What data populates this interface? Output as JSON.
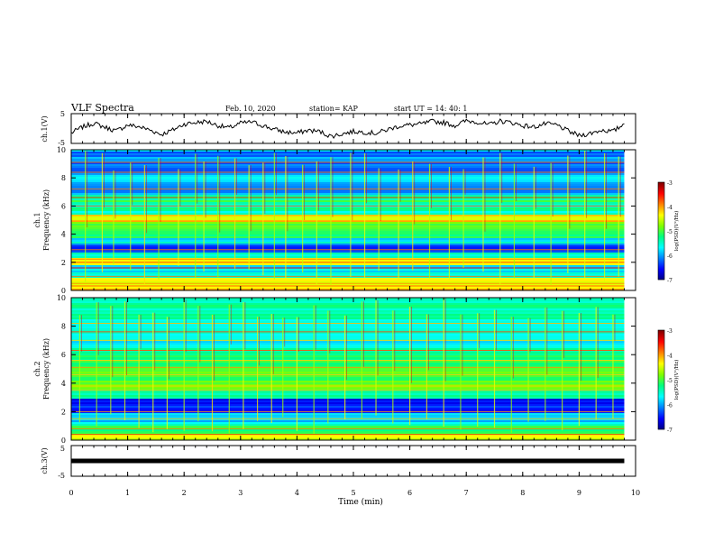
{
  "header": {
    "title": "VLF Spectra",
    "date": "Feb. 10, 2020",
    "station": "station= KAP",
    "start_ut": "start  UT =   14: 40: 1"
  },
  "chart_data": [
    {
      "type": "line",
      "panel": "ch1-waveform",
      "ylabel": "ch.1(V)",
      "ylim": [
        -5,
        5
      ],
      "y_ticks": [
        "5",
        "-5"
      ],
      "xlim": [
        0,
        10
      ],
      "trace_color": "#000000",
      "x": [
        0.0,
        0.2,
        0.4,
        0.6,
        0.8,
        1.0,
        1.2,
        1.4,
        1.6,
        1.8,
        2.0,
        2.2,
        2.4,
        2.6,
        2.8,
        3.0,
        3.2,
        3.4,
        3.6,
        3.8,
        4.0,
        4.2,
        4.4,
        4.6,
        4.8,
        5.0,
        5.2,
        5.4,
        5.6,
        5.8,
        6.0,
        6.2,
        6.4,
        6.6,
        6.8,
        7.0,
        7.2,
        7.4,
        7.6,
        7.8,
        8.0,
        8.2,
        8.4,
        8.6,
        8.8,
        9.0,
        9.2,
        9.4,
        9.6,
        9.8
      ],
      "y": [
        -1.5,
        0.5,
        1.8,
        0.4,
        -0.8,
        1.2,
        0.6,
        -0.5,
        -2.0,
        -0.5,
        1.5,
        2.0,
        2.4,
        1.0,
        0.2,
        1.8,
        2.2,
        1.0,
        -0.3,
        -1.2,
        -1.5,
        -0.6,
        -1.0,
        -2.6,
        -1.8,
        -1.0,
        -1.2,
        -1.6,
        -0.4,
        0.8,
        1.2,
        1.5,
        2.4,
        2.0,
        1.0,
        2.6,
        2.2,
        1.2,
        2.5,
        2.0,
        1.0,
        0.5,
        1.6,
        1.2,
        -0.8,
        -2.4,
        -1.6,
        -0.5,
        -1.0,
        1.6
      ]
    },
    {
      "type": "heatmap",
      "panel": "ch1-spectrogram",
      "ylabel": "ch.1\nFrequency (kHz)",
      "ylim": [
        0,
        10
      ],
      "y_ticks": [
        "0",
        "2",
        "4",
        "6",
        "8",
        "10"
      ],
      "xlim": [
        0,
        10
      ],
      "colorbar_label": "log(PSD)(V²/Hz)",
      "colorbar_ticks": [
        "-3",
        "-4",
        "-5",
        "-6",
        "-7"
      ],
      "colorbar_range": [
        -7,
        -3
      ],
      "y_bands": [
        [
          0,
          0.5,
          -4.2
        ],
        [
          0.5,
          1.0,
          -4.5
        ],
        [
          1.0,
          1.4,
          -5.4
        ],
        [
          1.4,
          1.9,
          -5.8
        ],
        [
          1.9,
          2.4,
          -4.4
        ],
        [
          2.4,
          2.8,
          -5.5
        ],
        [
          2.8,
          3.4,
          -6.3
        ],
        [
          3.4,
          3.8,
          -5.7
        ],
        [
          3.8,
          4.4,
          -5.2
        ],
        [
          4.4,
          5.0,
          -5.0
        ],
        [
          5.0,
          5.4,
          -4.3
        ],
        [
          5.4,
          6.2,
          -5.4
        ],
        [
          6.2,
          6.8,
          -5.2
        ],
        [
          6.8,
          7.6,
          -5.9
        ],
        [
          7.6,
          8.4,
          -5.8
        ],
        [
          8.4,
          10.0,
          -6.1
        ]
      ],
      "horizontal_lines_khz": [
        0.5,
        1.0,
        1.6,
        2.0,
        2.2,
        2.9,
        4.9,
        5.3,
        6.0,
        6.6,
        7.2,
        8.4,
        9.1
      ],
      "vertical_bursts_min": [
        0.25,
        0.55,
        0.75,
        1.05,
        1.3,
        1.55,
        1.9,
        2.2,
        2.35,
        2.6,
        2.9,
        3.15,
        3.4,
        3.6,
        3.8,
        4.1,
        4.35,
        4.6,
        4.95,
        5.2,
        5.45,
        5.8,
        6.05,
        6.35,
        6.7,
        6.95,
        7.3,
        7.6,
        7.85,
        8.2,
        8.5,
        8.8,
        9.1,
        9.45,
        9.7
      ]
    },
    {
      "type": "heatmap",
      "panel": "ch2-spectrogram",
      "ylabel": "ch.2\nFrequency (kHz)",
      "ylim": [
        0,
        10
      ],
      "y_ticks": [
        "0",
        "2",
        "4",
        "6",
        "8",
        "10"
      ],
      "xlim": [
        0,
        10
      ],
      "colorbar_label": "log(PSD)(V²/Hz)",
      "colorbar_ticks": [
        "-3",
        "-4",
        "-5",
        "-6",
        "-7"
      ],
      "colorbar_range": [
        -7,
        -3
      ],
      "y_bands": [
        [
          0,
          0.5,
          -4.3
        ],
        [
          0.5,
          1.2,
          -5.2
        ],
        [
          1.2,
          2.0,
          -5.8
        ],
        [
          2.0,
          3.0,
          -6.5
        ],
        [
          3.0,
          3.6,
          -5.4
        ],
        [
          3.6,
          4.3,
          -4.8
        ],
        [
          4.3,
          5.2,
          -4.9
        ],
        [
          5.2,
          6.0,
          -5.1
        ],
        [
          6.0,
          6.8,
          -5.4
        ],
        [
          6.8,
          8.0,
          -5.6
        ],
        [
          8.0,
          10.0,
          -5.4
        ]
      ],
      "horizontal_lines_khz": [
        0.4,
        0.8,
        1.5,
        2.0,
        3.5,
        3.8,
        4.6,
        5.1,
        5.6,
        6.3,
        7.0,
        7.6,
        8.2
      ],
      "vertical_bursts_min": [
        0.15,
        0.45,
        0.7,
        0.95,
        1.2,
        1.45,
        1.7,
        2.0,
        2.25,
        2.5,
        2.8,
        3.05,
        3.3,
        3.55,
        3.75,
        4.0,
        4.3,
        4.55,
        4.85,
        5.15,
        5.4,
        5.7,
        6.0,
        6.3,
        6.6,
        6.9,
        7.2,
        7.5,
        7.8,
        8.1,
        8.4,
        8.7,
        9.0,
        9.3,
        9.6
      ]
    },
    {
      "type": "line",
      "panel": "ch3-waveform",
      "ylabel": "ch.3(V)",
      "ylim": [
        -5,
        5
      ],
      "y_ticks": [
        "5",
        "-5"
      ],
      "xlim": [
        0,
        10
      ],
      "trace_color": "#000000",
      "x": [
        0,
        9.8
      ],
      "y": [
        0,
        0
      ]
    }
  ],
  "x_axis": {
    "label": "Time (min)",
    "ticks": [
      "0",
      "1",
      "2",
      "3",
      "4",
      "5",
      "6",
      "7",
      "8",
      "9",
      "10"
    ],
    "range": [
      0,
      10
    ]
  },
  "colorbar_colors": [
    "#000080",
    "#0000ff",
    "#0080ff",
    "#00ffff",
    "#00ff80",
    "#80ff00",
    "#ffff00",
    "#ff8000",
    "#ff0000",
    "#800000"
  ]
}
